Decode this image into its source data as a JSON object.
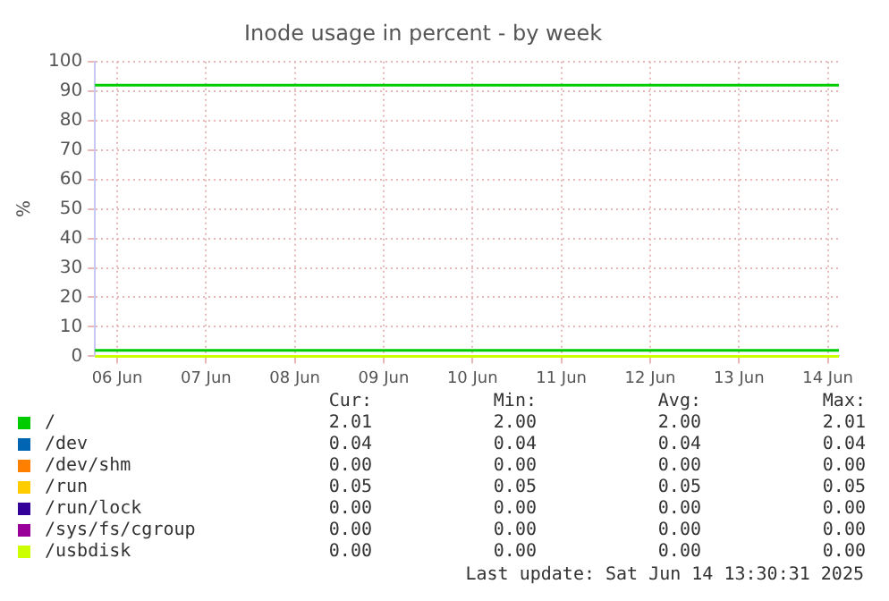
{
  "chart_data": {
    "type": "line",
    "title": "Inode usage in percent - by week",
    "ylabel": "%",
    "x": [
      "2025-06-06T06:00",
      "2025-06-14T15:00"
    ],
    "series": [
      {
        "name": "/",
        "color": "#00cc00",
        "values": [
          2,
          2
        ]
      },
      {
        "name": "/dev",
        "color": "#0066b3",
        "values": [
          null,
          null
        ]
      },
      {
        "name": "/dev/shm",
        "color": "#ff8000",
        "values": [
          null,
          null
        ]
      },
      {
        "name": "/run",
        "color": "#ffcc00",
        "values": [
          null,
          null
        ]
      },
      {
        "name": "/run/lock",
        "color": "#330099",
        "values": [
          null,
          null
        ]
      },
      {
        "name": "/sys/fs/cgroup",
        "color": "#990099",
        "values": [
          null,
          null
        ]
      },
      {
        "name": "/usbdisk",
        "color": "#ccff00",
        "values": [
          0,
          0
        ]
      }
    ],
    "ref_lines": [
      {
        "axis": "y",
        "value": 92,
        "color": "#00cc00"
      }
    ],
    "xlim": [
      "2025-06-06T06:00",
      "2025-06-14T15:00"
    ],
    "xticks": [
      {
        "value": "2025-06-06T12:00",
        "label": "06 Jun"
      },
      {
        "value": "2025-06-07T12:00",
        "label": "07 Jun"
      },
      {
        "value": "2025-06-08T12:00",
        "label": "08 Jun"
      },
      {
        "value": "2025-06-09T12:00",
        "label": "09 Jun"
      },
      {
        "value": "2025-06-10T12:00",
        "label": "10 Jun"
      },
      {
        "value": "2025-06-11T12:00",
        "label": "11 Jun"
      },
      {
        "value": "2025-06-12T12:00",
        "label": "12 Jun"
      },
      {
        "value": "2025-06-13T12:00",
        "label": "13 Jun"
      },
      {
        "value": "2025-06-14T12:00",
        "label": "14 Jun"
      }
    ],
    "ylim": [
      0,
      100
    ],
    "yticks": [
      0,
      10,
      20,
      30,
      40,
      50,
      60,
      70,
      80,
      90,
      100
    ],
    "grid": true,
    "legend": "bottom",
    "marker": "none",
    "line_style": "solid",
    "annotations": [
      "Cur:",
      "Min:",
      "Avg:",
      "Max:",
      "2.01",
      "2.00",
      "2.00",
      "2.01",
      "0.04",
      "0.04",
      "0.04",
      "0.04",
      "0.00",
      "0.00",
      "0.00",
      "0.00",
      "0.05",
      "0.05",
      "0.05",
      "0.05",
      "0.00",
      "0.00",
      "0.00",
      "0.00",
      "0.00",
      "0.00",
      "0.00",
      "0.00",
      "0.00",
      "0.00",
      "0.00",
      "0.00",
      "Last update: Sat Jun 14 13:30:31 2025"
    ]
  }
}
